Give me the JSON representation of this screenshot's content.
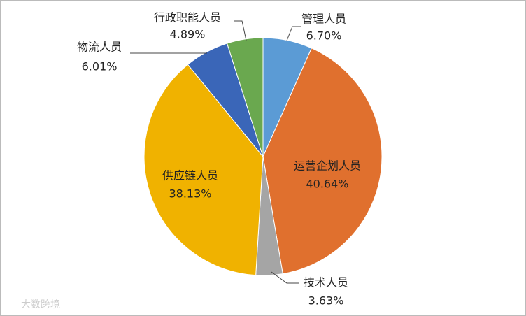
{
  "chart_data": {
    "type": "pie",
    "categories": [
      "管理人员",
      "运营企划人员",
      "技术人员",
      "供应链人员",
      "物流人员",
      "行政职能人员"
    ],
    "values": [
      6.7,
      40.64,
      3.63,
      38.13,
      6.01,
      4.89
    ],
    "value_labels": [
      "6.70%",
      "40.64%",
      "3.63%",
      "38.13%",
      "6.01%",
      "4.89%"
    ],
    "colors": [
      "#5b9bd5",
      "#e0702e",
      "#a5a5a5",
      "#f0b200",
      "#3a66b8",
      "#6aa84f"
    ],
    "watermark": "大数跨境"
  }
}
